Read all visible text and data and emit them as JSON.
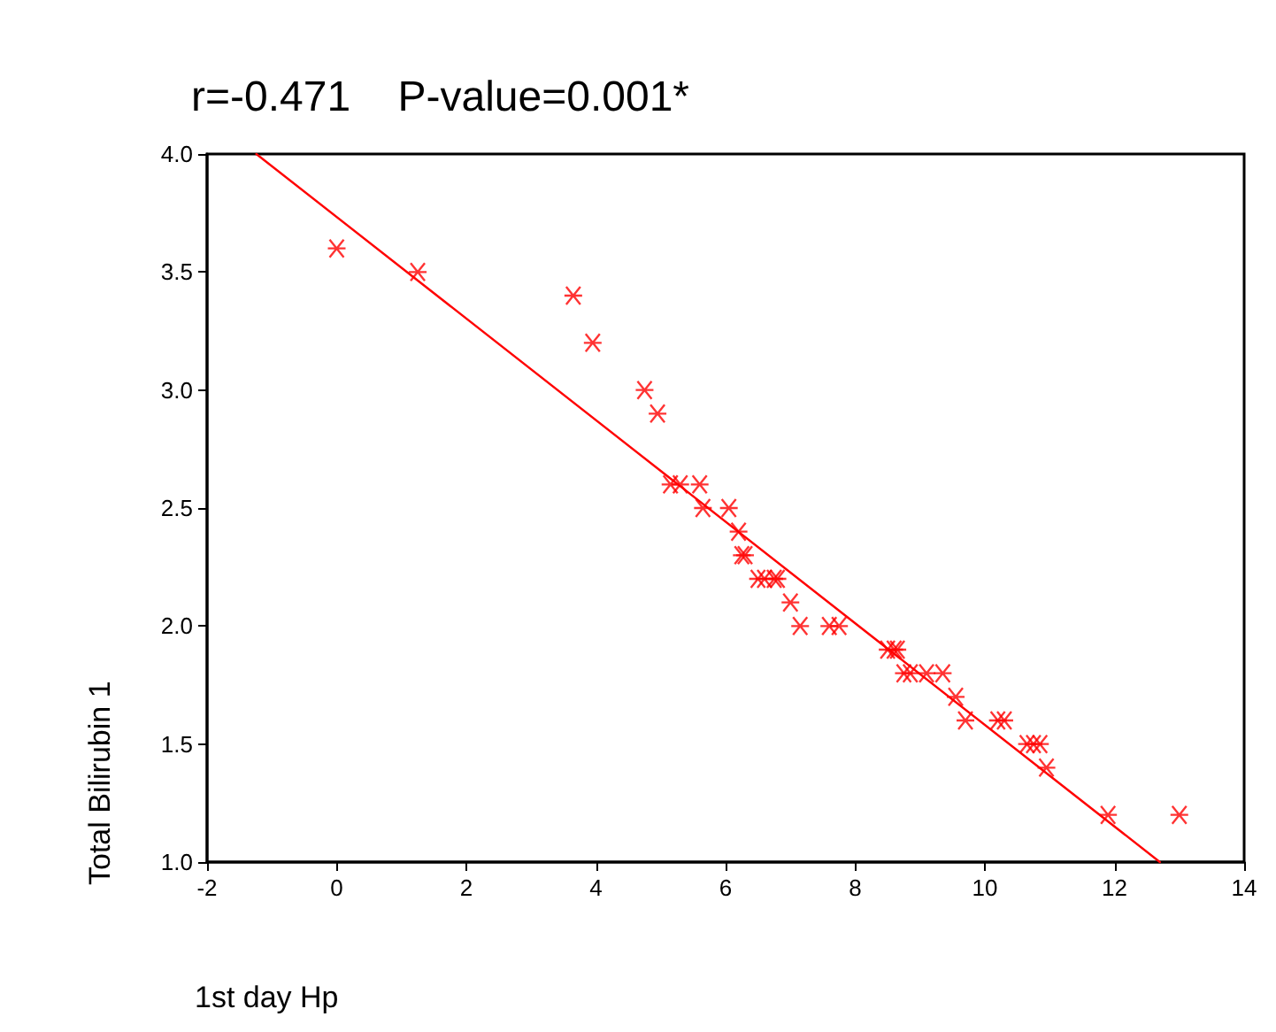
{
  "chart_data": {
    "type": "scatter",
    "title": "r=-0.471    P-value=0.001*",
    "xlabel": "1st day Hp",
    "ylabel": "Total Bilirubin 1",
    "x": [
      0,
      1.25,
      3.65,
      3.95,
      4.75,
      4.95,
      5.15,
      5.3,
      5.6,
      5.65,
      6.05,
      6.2,
      6.25,
      6.3,
      6.5,
      6.6,
      6.75,
      6.8,
      7.0,
      7.15,
      7.6,
      7.75,
      8.5,
      8.6,
      8.65,
      8.75,
      8.85,
      9.1,
      9.35,
      9.55,
      9.7,
      10.2,
      10.3,
      10.65,
      10.75,
      10.85,
      10.95,
      11.9,
      13.0
    ],
    "series": [
      {
        "color": "#ff0000",
        "marker": "cross",
        "values": [
          3.6,
          3.5,
          3.4,
          3.2,
          3.0,
          2.9,
          2.6,
          2.6,
          2.6,
          2.5,
          2.5,
          2.4,
          2.3,
          2.3,
          2.2,
          2.2,
          2.2,
          2.2,
          2.1,
          2.0,
          2.0,
          2.0,
          1.9,
          1.9,
          1.9,
          1.8,
          1.8,
          1.8,
          1.8,
          1.7,
          1.6,
          1.6,
          1.6,
          1.5,
          1.5,
          1.5,
          1.4,
          1.2,
          1.2
        ]
      },
      {
        "type": "line",
        "color": "#ff0000",
        "marker": "none",
        "line_style": "solid",
        "x": [
          -1.24,
          12.7
        ],
        "values": [
          4.0,
          1.0
        ]
      }
    ],
    "xlim": [
      -2,
      14
    ],
    "xticks": [
      -2,
      0,
      2,
      4,
      6,
      8,
      10,
      12,
      14
    ],
    "ylim": [
      1.0,
      4.0
    ],
    "yticks": [
      {
        "value": 1.0,
        "label": "1.0"
      },
      {
        "value": 1.5,
        "label": "1.5"
      },
      {
        "value": 2.0,
        "label": "2.0"
      },
      {
        "value": 2.5,
        "label": "2.5"
      },
      {
        "value": 3.0,
        "label": "3.0"
      },
      {
        "value": 3.5,
        "label": "3.5"
      },
      {
        "value": 4.0,
        "label": "4.0"
      }
    ],
    "grid": false
  }
}
